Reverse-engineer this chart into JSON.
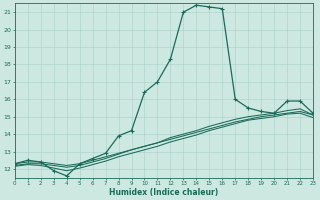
{
  "xlabel": "Humidex (Indice chaleur)",
  "bg_color": "#cce8e0",
  "line_color": "#1a6b5a",
  "grid_color": "#aacfc8",
  "xlim": [
    0,
    23
  ],
  "ylim": [
    11.5,
    21.5
  ],
  "yticks": [
    12,
    13,
    14,
    15,
    16,
    17,
    18,
    19,
    20,
    21
  ],
  "xticks": [
    0,
    1,
    2,
    3,
    4,
    5,
    6,
    7,
    8,
    9,
    10,
    11,
    12,
    13,
    14,
    15,
    16,
    17,
    18,
    19,
    20,
    21,
    22,
    23
  ],
  "line1_x": [
    0,
    1,
    2,
    3,
    4,
    5,
    6,
    7,
    8,
    9,
    10,
    11,
    12,
    13,
    14,
    15,
    16,
    17,
    18,
    19,
    20,
    21,
    22,
    23
  ],
  "line1_y": [
    12.3,
    12.5,
    12.4,
    11.9,
    11.6,
    12.3,
    12.6,
    12.9,
    13.9,
    14.2,
    16.4,
    17.0,
    18.3,
    21.0,
    21.4,
    21.3,
    21.2,
    16.0,
    15.5,
    15.3,
    15.2,
    15.9,
    15.9,
    15.2
  ],
  "line2_x": [
    0,
    1,
    2,
    3,
    4,
    5,
    6,
    7,
    8,
    9,
    10,
    11,
    12,
    13,
    14,
    15,
    16,
    17,
    18,
    19,
    20,
    21,
    22,
    23
  ],
  "line2_y": [
    12.3,
    12.4,
    12.4,
    12.3,
    12.2,
    12.3,
    12.5,
    12.7,
    12.9,
    13.1,
    13.3,
    13.5,
    13.7,
    13.9,
    14.1,
    14.3,
    14.5,
    14.7,
    14.85,
    15.0,
    15.1,
    15.2,
    15.3,
    15.1
  ],
  "line3_x": [
    0,
    1,
    2,
    3,
    4,
    5,
    6,
    7,
    8,
    9,
    10,
    11,
    12,
    13,
    14,
    15,
    16,
    17,
    18,
    19,
    20,
    21,
    22,
    23
  ],
  "line3_y": [
    12.2,
    12.3,
    12.3,
    12.2,
    12.1,
    12.2,
    12.4,
    12.6,
    12.85,
    13.1,
    13.3,
    13.5,
    13.8,
    14.0,
    14.2,
    14.45,
    14.65,
    14.85,
    15.0,
    15.1,
    15.2,
    15.35,
    15.45,
    15.1
  ],
  "line4_x": [
    0,
    1,
    2,
    3,
    4,
    5,
    6,
    7,
    8,
    9,
    10,
    11,
    12,
    13,
    14,
    15,
    16,
    17,
    18,
    19,
    20,
    21,
    22,
    23
  ],
  "line4_y": [
    12.15,
    12.25,
    12.2,
    12.05,
    11.9,
    12.05,
    12.25,
    12.45,
    12.7,
    12.9,
    13.1,
    13.3,
    13.55,
    13.75,
    13.95,
    14.2,
    14.4,
    14.6,
    14.8,
    14.9,
    15.0,
    15.15,
    15.2,
    14.95
  ]
}
